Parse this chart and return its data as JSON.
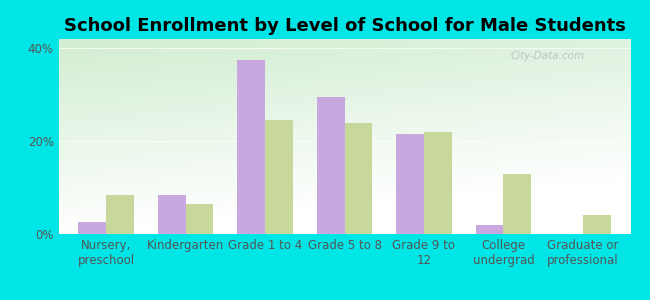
{
  "title": "School Enrollment by Level of School for Male Students",
  "categories": [
    "Nursery,\npreschool",
    "Kindergarten",
    "Grade 1 to 4",
    "Grade 5 to 8",
    "Grade 9 to\n12",
    "College\nundergrad",
    "Graduate or\nprofessional"
  ],
  "canoochee": [
    2.5,
    8.5,
    37.5,
    29.5,
    21.5,
    2.0,
    0.0
  ],
  "georgia": [
    8.5,
    6.5,
    24.5,
    24.0,
    22.0,
    13.0,
    4.0
  ],
  "canoochee_color": "#c9a8e0",
  "georgia_color": "#c8d89a",
  "background_color": "#00e5e5",
  "ylim": [
    0,
    42
  ],
  "yticks": [
    0,
    20,
    40
  ],
  "ytick_labels": [
    "0%",
    "20%",
    "40%"
  ],
  "title_fontsize": 13,
  "tick_fontsize": 8.5,
  "legend_fontsize": 10,
  "bar_width": 0.35,
  "watermark_text": "City-Data.com"
}
